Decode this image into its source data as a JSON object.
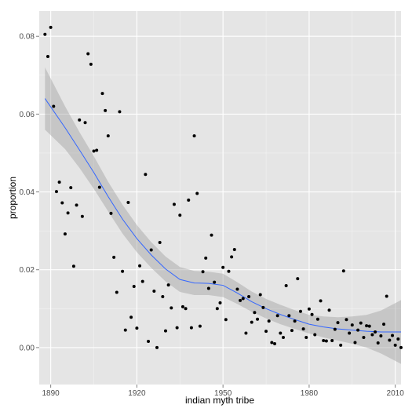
{
  "chart_data": {
    "type": "scatter",
    "title": "",
    "xlabel": "indian myth tribe",
    "ylabel": "proportion",
    "xlim": [
      1886,
      2012
    ],
    "ylim": [
      -0.0095,
      0.0865
    ],
    "x_ticks": [
      1890,
      1920,
      1950,
      1980,
      2010
    ],
    "y_ticks": [
      0.0,
      0.02,
      0.04,
      0.06,
      0.08
    ],
    "x_tick_labels": [
      "1890",
      "1920",
      "1950",
      "1980",
      "2010"
    ],
    "y_tick_labels": [
      "0.00",
      "0.02",
      "0.04",
      "0.06",
      "0.08"
    ],
    "grid": true,
    "points": [
      {
        "x": 1888,
        "y": 0.0805
      },
      {
        "x": 1889,
        "y": 0.0748
      },
      {
        "x": 1890,
        "y": 0.0823
      },
      {
        "x": 1891,
        "y": 0.062
      },
      {
        "x": 1892,
        "y": 0.0401
      },
      {
        "x": 1893,
        "y": 0.0425
      },
      {
        "x": 1894,
        "y": 0.0372
      },
      {
        "x": 1895,
        "y": 0.0292
      },
      {
        "x": 1896,
        "y": 0.0346
      },
      {
        "x": 1897,
        "y": 0.0411
      },
      {
        "x": 1898,
        "y": 0.0209
      },
      {
        "x": 1899,
        "y": 0.0366
      },
      {
        "x": 1900,
        "y": 0.0585
      },
      {
        "x": 1901,
        "y": 0.0337
      },
      {
        "x": 1902,
        "y": 0.0578
      },
      {
        "x": 1903,
        "y": 0.0755
      },
      {
        "x": 1904,
        "y": 0.0728
      },
      {
        "x": 1905,
        "y": 0.0505
      },
      {
        "x": 1906,
        "y": 0.0507
      },
      {
        "x": 1907,
        "y": 0.0412
      },
      {
        "x": 1908,
        "y": 0.0653
      },
      {
        "x": 1909,
        "y": 0.0609
      },
      {
        "x": 1910,
        "y": 0.0544
      },
      {
        "x": 1911,
        "y": 0.0345
      },
      {
        "x": 1912,
        "y": 0.0232
      },
      {
        "x": 1913,
        "y": 0.0142
      },
      {
        "x": 1914,
        "y": 0.0606
      },
      {
        "x": 1915,
        "y": 0.0196
      },
      {
        "x": 1916,
        "y": 0.0045
      },
      {
        "x": 1917,
        "y": 0.0373
      },
      {
        "x": 1918,
        "y": 0.0078
      },
      {
        "x": 1919,
        "y": 0.0157
      },
      {
        "x": 1920,
        "y": 0.005
      },
      {
        "x": 1921,
        "y": 0.021
      },
      {
        "x": 1922,
        "y": 0.017
      },
      {
        "x": 1923,
        "y": 0.0445
      },
      {
        "x": 1924,
        "y": 0.0016
      },
      {
        "x": 1925,
        "y": 0.0251
      },
      {
        "x": 1926,
        "y": 0.0145
      },
      {
        "x": 1927,
        "y": 0.0
      },
      {
        "x": 1928,
        "y": 0.027
      },
      {
        "x": 1929,
        "y": 0.0131
      },
      {
        "x": 1930,
        "y": 0.0043
      },
      {
        "x": 1931,
        "y": 0.0161
      },
      {
        "x": 1932,
        "y": 0.0102
      },
      {
        "x": 1933,
        "y": 0.0368
      },
      {
        "x": 1934,
        "y": 0.0051
      },
      {
        "x": 1935,
        "y": 0.034
      },
      {
        "x": 1936,
        "y": 0.0105
      },
      {
        "x": 1937,
        "y": 0.01
      },
      {
        "x": 1938,
        "y": 0.0379
      },
      {
        "x": 1939,
        "y": 0.0051
      },
      {
        "x": 1940,
        "y": 0.0544
      },
      {
        "x": 1941,
        "y": 0.0396
      },
      {
        "x": 1942,
        "y": 0.0055
      },
      {
        "x": 1943,
        "y": 0.0195
      },
      {
        "x": 1944,
        "y": 0.023
      },
      {
        "x": 1945,
        "y": 0.0152
      },
      {
        "x": 1946,
        "y": 0.0289
      },
      {
        "x": 1947,
        "y": 0.0168
      },
      {
        "x": 1948,
        "y": 0.01
      },
      {
        "x": 1949,
        "y": 0.0115
      },
      {
        "x": 1950,
        "y": 0.0206
      },
      {
        "x": 1951,
        "y": 0.0072
      },
      {
        "x": 1952,
        "y": 0.0196
      },
      {
        "x": 1953,
        "y": 0.0233
      },
      {
        "x": 1954,
        "y": 0.0252
      },
      {
        "x": 1955,
        "y": 0.015
      },
      {
        "x": 1956,
        "y": 0.0121
      },
      {
        "x": 1957,
        "y": 0.0126
      },
      {
        "x": 1958,
        "y": 0.0037
      },
      {
        "x": 1959,
        "y": 0.0131
      },
      {
        "x": 1960,
        "y": 0.0065
      },
      {
        "x": 1961,
        "y": 0.009
      },
      {
        "x": 1962,
        "y": 0.0073
      },
      {
        "x": 1963,
        "y": 0.0136
      },
      {
        "x": 1964,
        "y": 0.0103
      },
      {
        "x": 1965,
        "y": 0.0042
      },
      {
        "x": 1966,
        "y": 0.0068
      },
      {
        "x": 1967,
        "y": 0.0013
      },
      {
        "x": 1968,
        "y": 0.001
      },
      {
        "x": 1969,
        "y": 0.0082
      },
      {
        "x": 1970,
        "y": 0.0037
      },
      {
        "x": 1971,
        "y": 0.0026
      },
      {
        "x": 1972,
        "y": 0.0159
      },
      {
        "x": 1973,
        "y": 0.0082
      },
      {
        "x": 1974,
        "y": 0.0044
      },
      {
        "x": 1975,
        "y": 0.0068
      },
      {
        "x": 1976,
        "y": 0.0177
      },
      {
        "x": 1977,
        "y": 0.0093
      },
      {
        "x": 1978,
        "y": 0.0048
      },
      {
        "x": 1979,
        "y": 0.0026
      },
      {
        "x": 1980,
        "y": 0.0099
      },
      {
        "x": 1981,
        "y": 0.0085
      },
      {
        "x": 1982,
        "y": 0.0033
      },
      {
        "x": 1983,
        "y": 0.0073
      },
      {
        "x": 1984,
        "y": 0.012
      },
      {
        "x": 1985,
        "y": 0.0018
      },
      {
        "x": 1986,
        "y": 0.0017
      },
      {
        "x": 1987,
        "y": 0.0096
      },
      {
        "x": 1988,
        "y": 0.0018
      },
      {
        "x": 1989,
        "y": 0.0047
      },
      {
        "x": 1990,
        "y": 0.0064
      },
      {
        "x": 1991,
        "y": 0.0006
      },
      {
        "x": 1992,
        "y": 0.0197
      },
      {
        "x": 1993,
        "y": 0.0072
      },
      {
        "x": 1994,
        "y": 0.0037
      },
      {
        "x": 1995,
        "y": 0.0058
      },
      {
        "x": 1996,
        "y": 0.0013
      },
      {
        "x": 1997,
        "y": 0.0045
      },
      {
        "x": 1998,
        "y": 0.0063
      },
      {
        "x": 1999,
        "y": 0.0026
      },
      {
        "x": 2000,
        "y": 0.0056
      },
      {
        "x": 2001,
        "y": 0.0055
      },
      {
        "x": 2002,
        "y": 0.0033
      },
      {
        "x": 2003,
        "y": 0.004
      },
      {
        "x": 2004,
        "y": 0.0012
      },
      {
        "x": 2005,
        "y": 0.003
      },
      {
        "x": 2006,
        "y": 0.006
      },
      {
        "x": 2007,
        "y": 0.0132
      },
      {
        "x": 2008,
        "y": 0.0019
      },
      {
        "x": 2009,
        "y": 0.0031
      },
      {
        "x": 2010,
        "y": 0.0006
      },
      {
        "x": 2011,
        "y": 0.0022
      },
      {
        "x": 2012,
        "y": 0.0
      }
    ],
    "smooth": {
      "x": [
        1888,
        1895,
        1900,
        1905,
        1910,
        1915,
        1920,
        1925,
        1930,
        1935,
        1940,
        1945,
        1950,
        1955,
        1960,
        1965,
        1970,
        1975,
        1980,
        1985,
        1990,
        1995,
        2000,
        2005,
        2012
      ],
      "y": [
        0.064,
        0.0565,
        0.0508,
        0.045,
        0.0388,
        0.033,
        0.028,
        0.0238,
        0.0202,
        0.0175,
        0.0166,
        0.0165,
        0.016,
        0.014,
        0.0118,
        0.01,
        0.0085,
        0.0072,
        0.006,
        0.0053,
        0.0048,
        0.0045,
        0.0042,
        0.004,
        0.004
      ],
      "lower": [
        0.056,
        0.051,
        0.0462,
        0.0408,
        0.035,
        0.0293,
        0.0245,
        0.0205,
        0.017,
        0.0143,
        0.0135,
        0.0135,
        0.013,
        0.0112,
        0.0092,
        0.0075,
        0.006,
        0.0048,
        0.0036,
        0.0026,
        0.0018,
        0.001,
        0.0,
        -0.0015,
        -0.0042
      ],
      "upper": [
        0.072,
        0.062,
        0.0554,
        0.0492,
        0.0426,
        0.0367,
        0.0315,
        0.0271,
        0.0234,
        0.0207,
        0.0197,
        0.0195,
        0.019,
        0.0168,
        0.0144,
        0.0125,
        0.011,
        0.0096,
        0.0084,
        0.008,
        0.0078,
        0.008,
        0.0084,
        0.0095,
        0.0122
      ]
    },
    "colors": {
      "panel": "#e5e5e5",
      "grid_major": "#ffffff",
      "grid_minor": "#f2f2f2",
      "points": "#000000",
      "smooth_line": "#3366ff",
      "ribbon": "#999999"
    }
  }
}
